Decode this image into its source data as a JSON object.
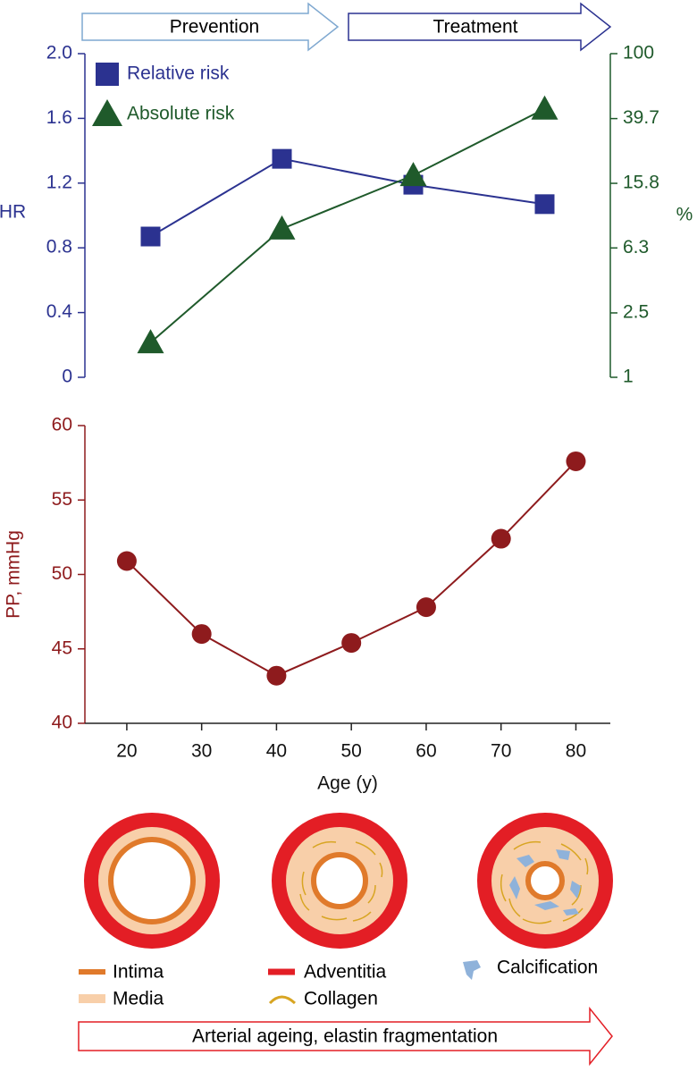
{
  "chart_data": [
    {
      "type": "line",
      "annotations": [
        "Prevention",
        "Treatment"
      ],
      "ylabel": "HR",
      "y2label": "%",
      "categories": [
        null,
        null,
        null,
        null
      ],
      "series": [
        {
          "name": "Relative risk",
          "color": "#2b3290",
          "marker": "square",
          "values": [
            0.87,
            1.35,
            1.19,
            1.07
          ]
        },
        {
          "name": "Absolute risk",
          "color": "#1f5a2b",
          "marker": "triangle",
          "axis": "y2",
          "values": [
            1.64,
            8.27,
            17.7,
            45.6
          ]
        }
      ],
      "ylim": [
        0,
        2
      ],
      "yticks": [
        0,
        0.4,
        0.8,
        1.2,
        1.6,
        {
          "value": 2,
          "label": "2.0"
        }
      ],
      "y2lim": [
        1,
        100
      ],
      "y2scale": "log",
      "y2ticks": [
        1,
        2.5,
        6.3,
        15.8,
        39.7,
        100
      ],
      "legend": "upper left"
    },
    {
      "type": "line",
      "xlabel": "Age (y)",
      "ylabel": "PP, mmHg",
      "x": [
        20,
        30,
        40,
        50,
        60,
        70,
        80
      ],
      "series": [
        {
          "name": "PP",
          "color": "#8e1b1d",
          "marker": "circle",
          "values": [
            50.9,
            46.0,
            43.2,
            45.4,
            47.8,
            52.4,
            57.6
          ]
        }
      ],
      "xlim": [
        14.4,
        84.6
      ],
      "xticks": [
        20,
        30,
        40,
        50,
        60,
        70,
        80
      ],
      "ylim": [
        40,
        60
      ],
      "yticks": [
        40,
        45,
        50,
        55,
        60
      ]
    }
  ],
  "diagram": {
    "legend": [
      "Intima",
      "Media",
      "Adventitia",
      "Collagen",
      "Calcification"
    ],
    "arrow": "Arterial ageing, elastin fragmentation"
  }
}
